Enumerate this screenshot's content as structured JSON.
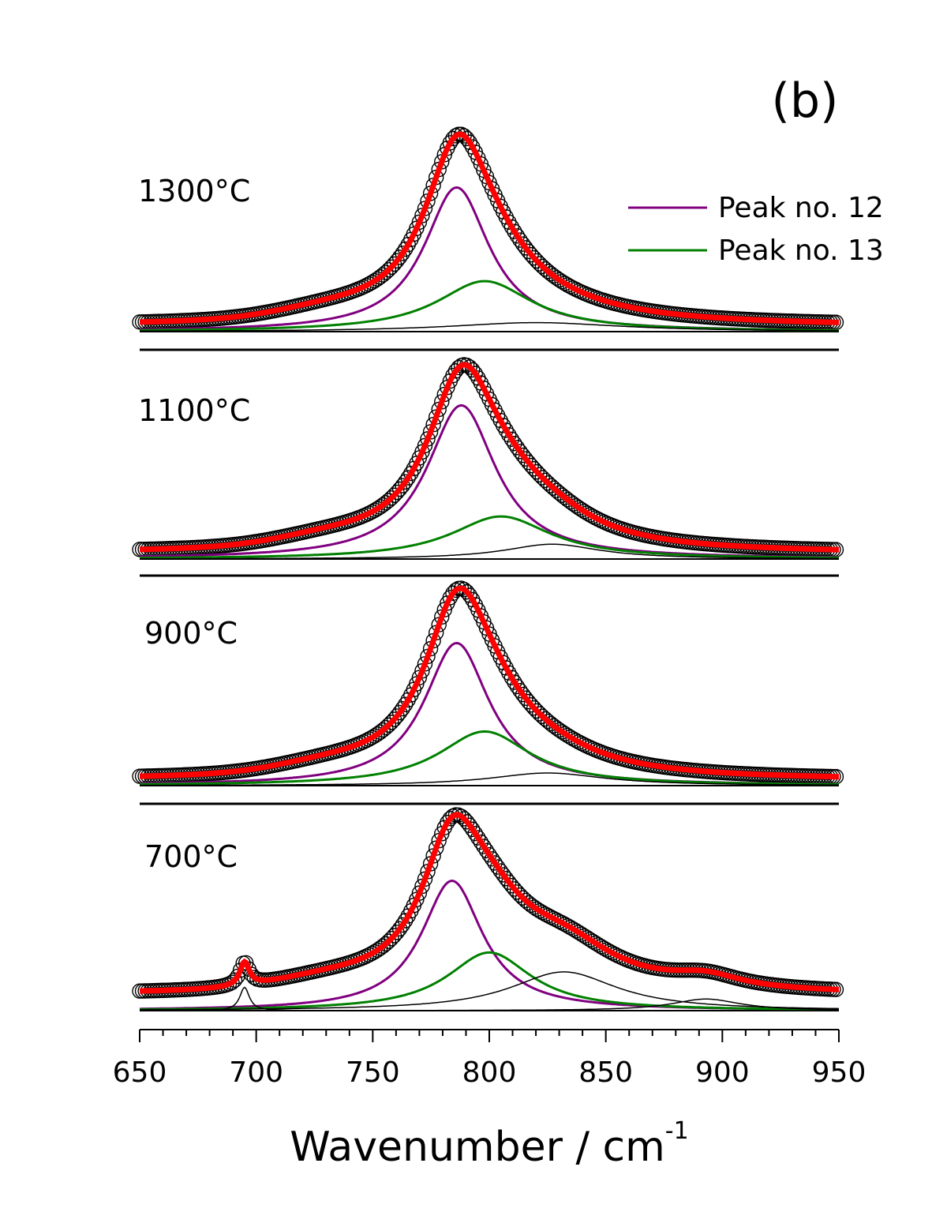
{
  "chart_data": {
    "type": "line",
    "panel_tag": "(b)",
    "xlabel_main": "Wavenumber / cm",
    "xlabel_sup": "-1",
    "xlim": [
      650,
      950
    ],
    "xticks": [
      650,
      700,
      750,
      800,
      850,
      900,
      950
    ],
    "legend": {
      "placement": "top-right",
      "entries": [
        {
          "label": "Peak no. 12",
          "color": "#800080"
        },
        {
          "label": "Peak no. 13",
          "color": "#008000"
        }
      ]
    },
    "colors": {
      "data": "#000000",
      "fit": "#ff0000",
      "peak12": "#800080",
      "peak13": "#008000",
      "other": "#000000"
    },
    "panels": [
      {
        "label": "1300°C",
        "data_symbols": "open-circles",
        "baseline": 0.03,
        "total_max": 1.0,
        "peaks": [
          {
            "name": "Peak no. 12",
            "center": 786,
            "hwhm": 17,
            "height": 0.8
          },
          {
            "name": "Peak no. 13",
            "center": 798,
            "hwhm": 25,
            "height": 0.28
          },
          {
            "name": "",
            "center": 820,
            "hwhm": 45,
            "height": 0.05
          }
        ],
        "shoulder": {
          "center": 730,
          "width": 30,
          "height": 0.04
        }
      },
      {
        "label": "1100°C",
        "data_symbols": "open-circles",
        "baseline": 0.03,
        "total_max": 1.0,
        "peaks": [
          {
            "name": "Peak no. 12",
            "center": 788,
            "hwhm": 18,
            "height": 0.83
          },
          {
            "name": "Peak no. 13",
            "center": 805,
            "hwhm": 26,
            "height": 0.23
          },
          {
            "name": "",
            "center": 827,
            "hwhm": 25,
            "height": 0.08
          }
        ],
        "shoulder": {
          "center": 730,
          "width": 30,
          "height": 0.04
        }
      },
      {
        "label": "900°C",
        "data_symbols": "open-circles",
        "baseline": 0.03,
        "total_max": 1.0,
        "peaks": [
          {
            "name": "Peak no. 12",
            "center": 786,
            "hwhm": 17,
            "height": 0.79
          },
          {
            "name": "Peak no. 13",
            "center": 798,
            "hwhm": 24,
            "height": 0.3
          },
          {
            "name": "",
            "center": 825,
            "hwhm": 30,
            "height": 0.07
          }
        ],
        "shoulder": {
          "center": 730,
          "width": 30,
          "height": 0.04
        }
      },
      {
        "label": "700°C",
        "data_symbols": "open-circles",
        "baseline": 0.08,
        "total_max": 1.0,
        "peaks": [
          {
            "name": "Peak no. 12",
            "center": 784,
            "hwhm": 16,
            "height": 0.67
          },
          {
            "name": "Peak no. 13",
            "center": 800,
            "hwhm": 22,
            "height": 0.3
          },
          {
            "name": "",
            "center": 832,
            "hwhm": 28,
            "height": 0.2
          },
          {
            "name": "",
            "center": 893,
            "hwhm": 18,
            "height": 0.06
          },
          {
            "name": "",
            "center": 695,
            "hwhm": 2.5,
            "height": 0.12
          }
        ],
        "shoulder": {
          "center": 730,
          "width": 30,
          "height": 0.04
        }
      }
    ]
  }
}
